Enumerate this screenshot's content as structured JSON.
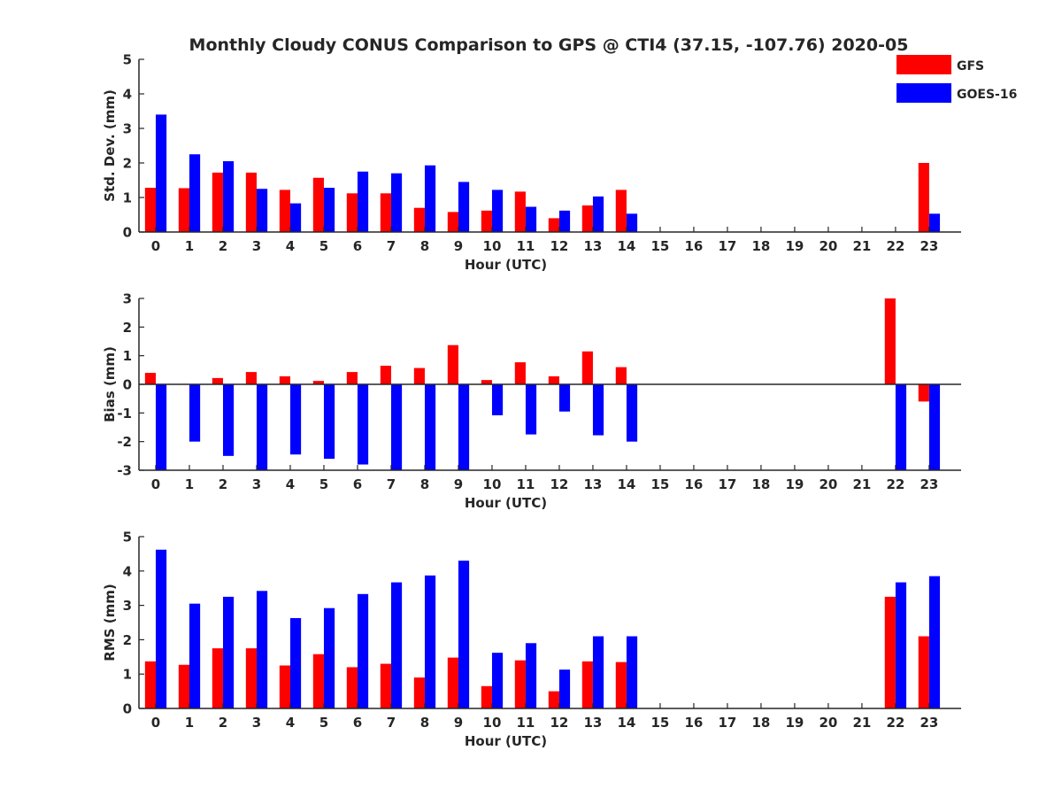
{
  "figure_title": "Monthly Cloudy CONUS Comparison to GPS @ CTI4 (37.15, -107.76) 2020-05",
  "legend": [
    {
      "label": "GFS",
      "color": "#ff0000"
    },
    {
      "label": "GOES-16",
      "color": "#0000ff"
    }
  ],
  "chart_data": [
    {
      "type": "bar",
      "title": "",
      "xlabel": "Hour (UTC)",
      "ylabel": "Std. Dev. (mm)",
      "ylim": [
        0,
        5
      ],
      "yticks": [
        0,
        1,
        2,
        3,
        4,
        5
      ],
      "categories": [
        0,
        1,
        2,
        3,
        4,
        5,
        6,
        7,
        8,
        9,
        10,
        11,
        12,
        13,
        14,
        15,
        16,
        17,
        18,
        19,
        20,
        21,
        22,
        23
      ],
      "series": [
        {
          "name": "GFS",
          "color": "#ff0000",
          "values": [
            1.28,
            1.27,
            1.72,
            1.72,
            1.22,
            1.57,
            1.12,
            1.12,
            0.7,
            0.58,
            0.62,
            1.17,
            0.4,
            0.77,
            1.22,
            null,
            null,
            null,
            null,
            null,
            null,
            null,
            null,
            2.0
          ]
        },
        {
          "name": "GOES-16",
          "color": "#0000ff",
          "values": [
            3.4,
            2.25,
            2.05,
            1.25,
            0.83,
            1.28,
            1.75,
            1.7,
            1.93,
            1.45,
            1.22,
            0.73,
            0.62,
            1.03,
            0.53,
            null,
            null,
            null,
            null,
            null,
            null,
            null,
            null,
            0.53
          ]
        }
      ]
    },
    {
      "type": "bar",
      "title": "",
      "xlabel": "Hour (UTC)",
      "ylabel": "Bias (mm)",
      "ylim": [
        -3,
        3
      ],
      "yticks": [
        -3,
        -2,
        -1,
        0,
        1,
        2,
        3
      ],
      "zero_line": true,
      "categories": [
        0,
        1,
        2,
        3,
        4,
        5,
        6,
        7,
        8,
        9,
        10,
        11,
        12,
        13,
        14,
        15,
        16,
        17,
        18,
        19,
        20,
        21,
        22,
        23
      ],
      "series": [
        {
          "name": "GFS",
          "color": "#ff0000",
          "values": [
            0.4,
            null,
            0.22,
            0.43,
            0.28,
            0.12,
            0.43,
            0.65,
            0.57,
            1.37,
            0.15,
            0.77,
            0.28,
            1.15,
            0.6,
            null,
            null,
            null,
            null,
            null,
            null,
            null,
            3.0,
            -0.6
          ]
        },
        {
          "name": "GOES-16",
          "color": "#0000ff",
          "values": [
            -3.0,
            -2.0,
            -2.5,
            -3.0,
            -2.45,
            -2.6,
            -2.8,
            -3.0,
            -3.0,
            -3.0,
            -1.08,
            -1.75,
            -0.95,
            -1.78,
            -2.0,
            null,
            null,
            null,
            null,
            null,
            null,
            null,
            -3.0,
            -3.0
          ]
        }
      ]
    },
    {
      "type": "bar",
      "title": "",
      "xlabel": "Hour (UTC)",
      "ylabel": "RMS (mm)",
      "ylim": [
        0,
        5
      ],
      "yticks": [
        0,
        1,
        2,
        3,
        4,
        5
      ],
      "categories": [
        0,
        1,
        2,
        3,
        4,
        5,
        6,
        7,
        8,
        9,
        10,
        11,
        12,
        13,
        14,
        15,
        16,
        17,
        18,
        19,
        20,
        21,
        22,
        23
      ],
      "series": [
        {
          "name": "GFS",
          "color": "#ff0000",
          "values": [
            1.37,
            1.27,
            1.75,
            1.75,
            1.25,
            1.58,
            1.2,
            1.3,
            0.9,
            1.48,
            0.65,
            1.4,
            0.5,
            1.37,
            1.35,
            null,
            null,
            null,
            null,
            null,
            null,
            null,
            3.25,
            2.1
          ]
        },
        {
          "name": "GOES-16",
          "color": "#0000ff",
          "values": [
            4.62,
            3.05,
            3.25,
            3.42,
            2.63,
            2.92,
            3.33,
            3.67,
            3.87,
            4.3,
            1.62,
            1.9,
            1.13,
            2.1,
            2.1,
            null,
            null,
            null,
            null,
            null,
            null,
            null,
            3.67,
            3.85
          ]
        }
      ]
    }
  ]
}
